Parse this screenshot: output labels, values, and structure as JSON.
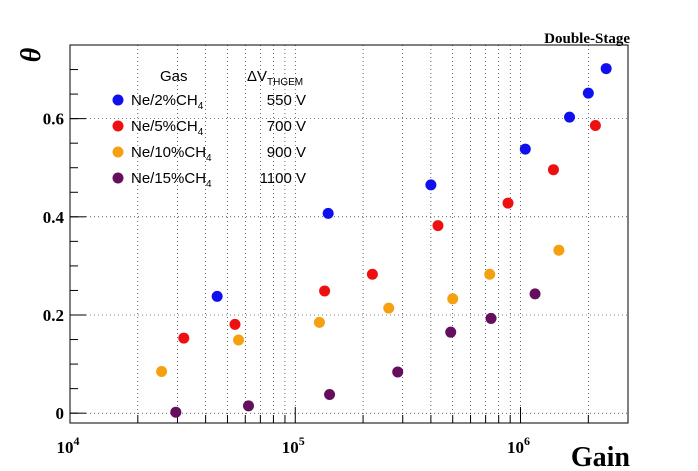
{
  "chart_data": {
    "type": "scatter",
    "title": "Double-Stage",
    "xlabel": "Gain",
    "ylabel": "θ",
    "xscale": "log",
    "xlim": [
      10000,
      3000000
    ],
    "ylim": [
      -0.02,
      0.75
    ],
    "grid": true,
    "x_tick_labels": [
      {
        "base": "10",
        "exp": "4",
        "value": 10000
      },
      {
        "base": "10",
        "exp": "5",
        "value": 100000
      },
      {
        "base": "10",
        "exp": "6",
        "value": 1000000
      }
    ],
    "y_ticks": [
      0,
      0.2,
      0.4,
      0.6
    ],
    "y_tick_labels": [
      "0",
      "0.2",
      "0.4",
      "0.6"
    ],
    "legend": {
      "position": "top-left",
      "header_gas": "Gas",
      "header_dv": "ΔV",
      "header_dv_sub": "THGEM"
    },
    "series": [
      {
        "name": "Ne/2%CH",
        "name_sub": "4",
        "dv": "550 V",
        "color": "#1010ee",
        "x": [
          45000,
          140000,
          400000,
          1050000,
          1650000,
          2000000,
          2400000
        ],
        "y": [
          0.238,
          0.407,
          0.465,
          0.538,
          0.603,
          0.652,
          0.702
        ]
      },
      {
        "name": "Ne/5%CH",
        "name_sub": "4",
        "dv": "700 V",
        "color": "#ee1010",
        "x": [
          32000,
          54000,
          135000,
          220000,
          430000,
          880000,
          1400000,
          2150000
        ],
        "y": [
          0.153,
          0.181,
          0.249,
          0.283,
          0.382,
          0.428,
          0.496,
          0.586
        ]
      },
      {
        "name": "Ne/10%CH",
        "name_sub": "4",
        "dv": "900 V",
        "color": "#f5a010",
        "x": [
          25500,
          56000,
          128000,
          260000,
          500000,
          730000,
          1480000
        ],
        "y": [
          0.085,
          0.149,
          0.185,
          0.214,
          0.233,
          0.283,
          0.332
        ]
      },
      {
        "name": "Ne/15%CH",
        "name_sub": "4",
        "dv": "1100 V",
        "color": "#660e5e",
        "x": [
          29500,
          62000,
          142000,
          285000,
          490000,
          740000,
          1160000
        ],
        "y": [
          0.002,
          0.015,
          0.038,
          0.084,
          0.165,
          0.193,
          0.243
        ]
      }
    ]
  }
}
